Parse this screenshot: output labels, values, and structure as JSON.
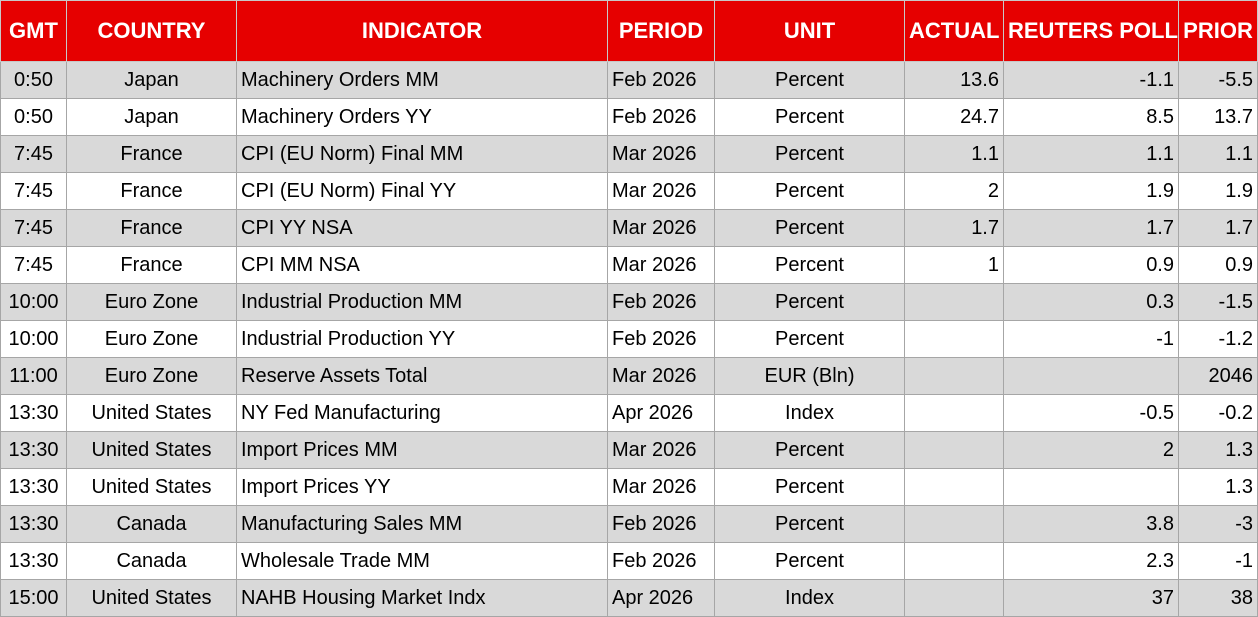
{
  "columns": {
    "gmt": "GMT",
    "country": "COUNTRY",
    "indicator": "INDICATOR",
    "period": "PERIOD",
    "unit": "UNIT",
    "actual": "ACTUAL",
    "poll": "REUTERS POLL",
    "prior": "PRIOR"
  },
  "colors": {
    "header_bg": "#e60000",
    "header_text": "#ffffff",
    "row_shade": "#d9d9d9",
    "row_plain": "#ffffff"
  },
  "rows": [
    {
      "gmt": "0:50",
      "country": "Japan",
      "indicator": "Machinery Orders MM",
      "period": "Feb 2026",
      "unit": "Percent",
      "actual": "13.6",
      "poll": "-1.1",
      "prior": "-5.5"
    },
    {
      "gmt": "0:50",
      "country": "Japan",
      "indicator": "Machinery Orders YY",
      "period": "Feb 2026",
      "unit": "Percent",
      "actual": "24.7",
      "poll": "8.5",
      "prior": "13.7"
    },
    {
      "gmt": "7:45",
      "country": "France",
      "indicator": "CPI (EU Norm) Final MM",
      "period": "Mar 2026",
      "unit": "Percent",
      "actual": "1.1",
      "poll": "1.1",
      "prior": "1.1"
    },
    {
      "gmt": "7:45",
      "country": "France",
      "indicator": "CPI (EU Norm) Final YY",
      "period": "Mar 2026",
      "unit": "Percent",
      "actual": "2",
      "poll": "1.9",
      "prior": "1.9"
    },
    {
      "gmt": "7:45",
      "country": "France",
      "indicator": "CPI YY NSA",
      "period": "Mar 2026",
      "unit": "Percent",
      "actual": "1.7",
      "poll": "1.7",
      "prior": "1.7"
    },
    {
      "gmt": "7:45",
      "country": "France",
      "indicator": "CPI MM NSA",
      "period": "Mar 2026",
      "unit": "Percent",
      "actual": "1",
      "poll": "0.9",
      "prior": "0.9"
    },
    {
      "gmt": "10:00",
      "country": "Euro Zone",
      "indicator": "Industrial Production MM",
      "period": "Feb 2026",
      "unit": "Percent",
      "actual": "",
      "poll": "0.3",
      "prior": "-1.5"
    },
    {
      "gmt": "10:00",
      "country": "Euro Zone",
      "indicator": "Industrial Production YY",
      "period": "Feb 2026",
      "unit": "Percent",
      "actual": "",
      "poll": "-1",
      "prior": "-1.2"
    },
    {
      "gmt": "11:00",
      "country": "Euro Zone",
      "indicator": "Reserve Assets Total",
      "period": "Mar 2026",
      "unit": "EUR (Bln)",
      "actual": "",
      "poll": "",
      "prior": "2046"
    },
    {
      "gmt": "13:30",
      "country": "United States",
      "indicator": "NY Fed Manufacturing",
      "period": "Apr 2026",
      "unit": "Index",
      "actual": "",
      "poll": "-0.5",
      "prior": "-0.2"
    },
    {
      "gmt": "13:30",
      "country": "United States",
      "indicator": "Import Prices MM",
      "period": "Mar 2026",
      "unit": "Percent",
      "actual": "",
      "poll": "2",
      "prior": "1.3"
    },
    {
      "gmt": "13:30",
      "country": "United States",
      "indicator": "Import Prices YY",
      "period": "Mar 2026",
      "unit": "Percent",
      "actual": "",
      "poll": "",
      "prior": "1.3"
    },
    {
      "gmt": "13:30",
      "country": "Canada",
      "indicator": "Manufacturing Sales MM",
      "period": "Feb 2026",
      "unit": "Percent",
      "actual": "",
      "poll": "3.8",
      "prior": "-3"
    },
    {
      "gmt": "13:30",
      "country": "Canada",
      "indicator": "Wholesale Trade MM",
      "period": "Feb 2026",
      "unit": "Percent",
      "actual": "",
      "poll": "2.3",
      "prior": "-1"
    },
    {
      "gmt": "15:00",
      "country": "United States",
      "indicator": "NAHB Housing Market Indx",
      "period": "Apr 2026",
      "unit": "Index",
      "actual": "",
      "poll": "37",
      "prior": "38"
    }
  ]
}
